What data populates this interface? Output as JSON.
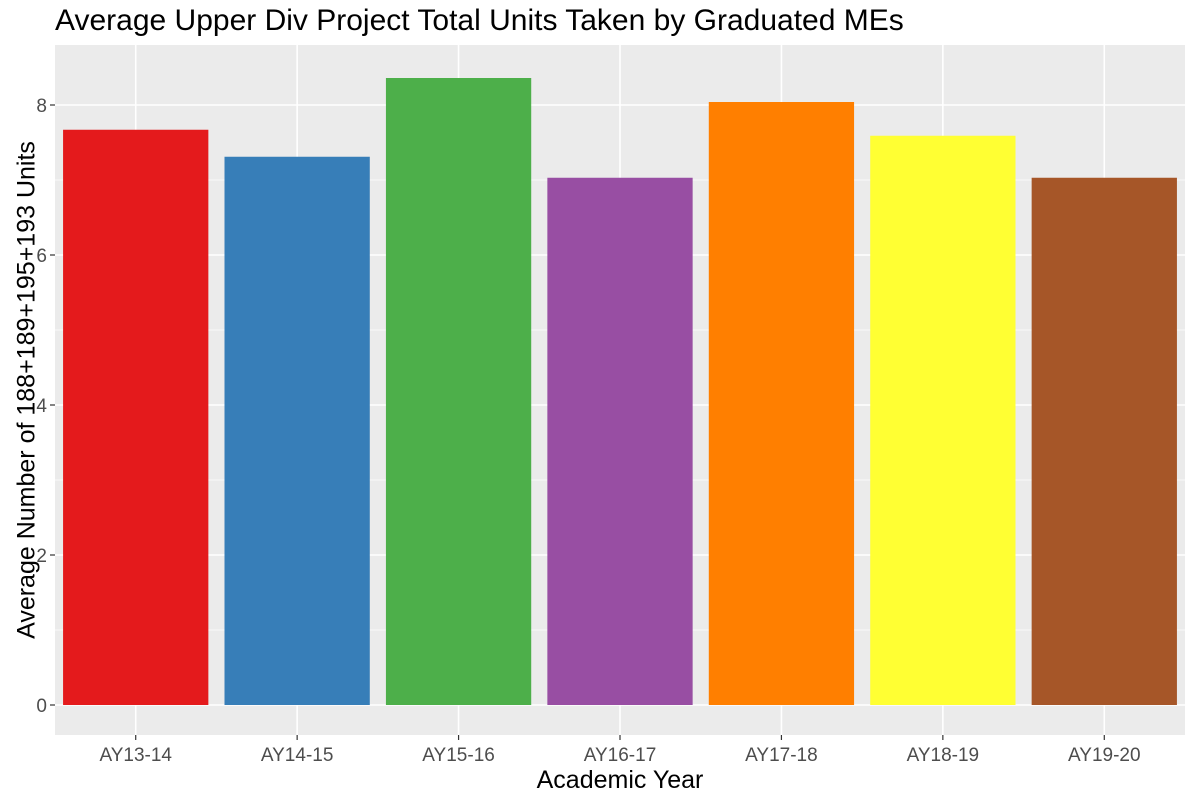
{
  "chart_data": {
    "type": "bar",
    "title": "Average Upper Div Project Total Units Taken by Graduated MEs",
    "xlabel": "Academic Year",
    "ylabel": "Average Number of 188+189+195+193 Units",
    "categories": [
      "AY13-14",
      "AY14-15",
      "AY15-16",
      "AY16-17",
      "AY17-18",
      "AY18-19",
      "AY19-20"
    ],
    "values": [
      7.67,
      7.31,
      8.36,
      7.03,
      8.04,
      7.59,
      7.03
    ],
    "colors": [
      "#E41A1C",
      "#377EB8",
      "#4DAF4A",
      "#984EA3",
      "#FF7F00",
      "#FFFF33",
      "#A65628"
    ],
    "ylim": [
      -0.4,
      8.8
    ],
    "yticks": [
      0,
      2,
      4,
      6,
      8
    ],
    "grid": true,
    "legend": "none",
    "panel_background": "#EBEBEB",
    "grid_color": "#FFFFFF"
  }
}
